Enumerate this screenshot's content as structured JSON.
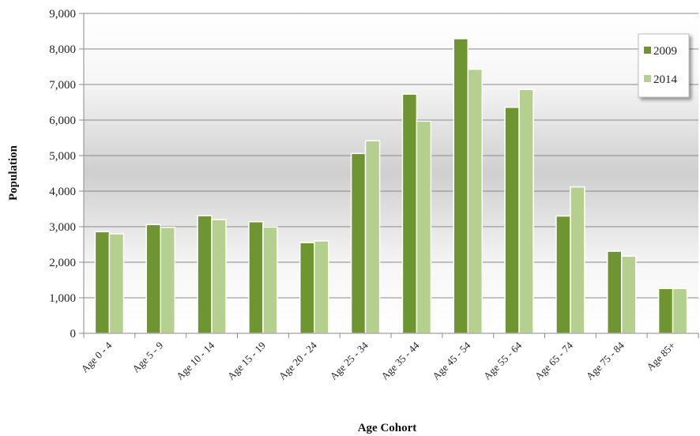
{
  "chart_data": {
    "type": "bar",
    "title": "",
    "xlabel": "Age Cohort",
    "ylabel": "Population",
    "ylim": [
      0,
      9000
    ],
    "yticks": [
      0,
      1000,
      2000,
      3000,
      4000,
      5000,
      6000,
      7000,
      8000,
      9000
    ],
    "ytick_labels": [
      "0",
      "1,000",
      "2,000",
      "3,000",
      "4,000",
      "5,000",
      "6,000",
      "7,000",
      "8,000",
      "9,000"
    ],
    "grid": true,
    "legend_position": "top-right",
    "categories": [
      "Age 0 - 4",
      "Age 5 - 9",
      "Age 10 - 14",
      "Age 15 - 19",
      "Age 20 - 24",
      "Age 25 - 34",
      "Age 35 - 44",
      "Age 45 - 54",
      "Age 55 - 64",
      "Age 65 - 74",
      "Age 75 - 84",
      "Age 85+"
    ],
    "series": [
      {
        "name": "2009",
        "color": "#6e9532",
        "values": [
          2860,
          3060,
          3310,
          3140,
          2550,
          5060,
          6730,
          8290,
          6360,
          3300,
          2310,
          1260
        ]
      },
      {
        "name": "2014",
        "color": "#b5cf8e",
        "values": [
          2800,
          2980,
          3200,
          2990,
          2600,
          5420,
          5970,
          7430,
          6860,
          4120,
          2170,
          1260
        ]
      }
    ]
  }
}
